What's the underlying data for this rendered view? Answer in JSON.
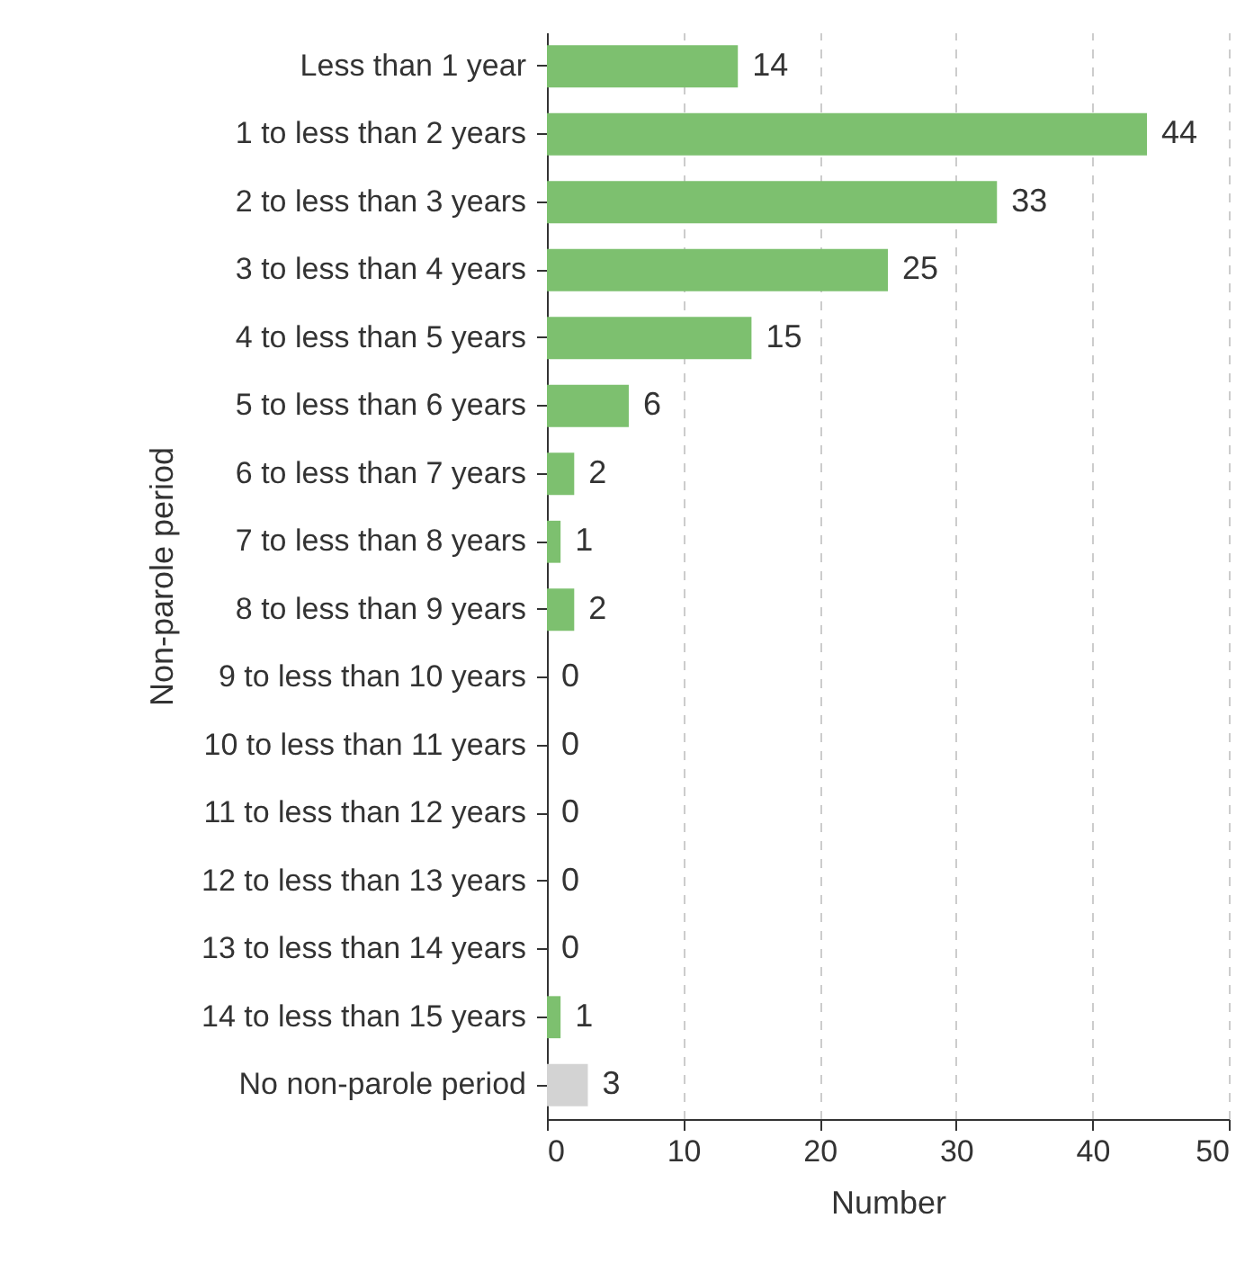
{
  "chart_data": {
    "type": "bar",
    "orientation": "horizontal",
    "xlabel": "Number",
    "ylabel": "Non-parole period",
    "categories": [
      "Less than 1 year",
      "1 to less than 2 years",
      "2 to less than 3 years",
      "3 to less than 4 years",
      "4 to less than 5 years",
      "5 to less than 6 years",
      "6 to less than 7 years",
      "7 to less than 8 years",
      "8 to less than 9 years",
      "9 to less than 10 years",
      "10 to less than 11 years",
      "11 to less than 12 years",
      "12 to less than 13 years",
      "13 to less than 14 years",
      "14 to less than 15 years",
      "No non-parole period"
    ],
    "values": [
      14,
      44,
      33,
      25,
      15,
      6,
      2,
      1,
      2,
      0,
      0,
      0,
      0,
      0,
      1,
      3
    ],
    "colors": [
      "#7dc06f",
      "#7dc06f",
      "#7dc06f",
      "#7dc06f",
      "#7dc06f",
      "#7dc06f",
      "#7dc06f",
      "#7dc06f",
      "#7dc06f",
      "#7dc06f",
      "#7dc06f",
      "#7dc06f",
      "#7dc06f",
      "#7dc06f",
      "#7dc06f",
      "#d3d3d3"
    ],
    "xlim": [
      0,
      50
    ],
    "xticks": [
      0,
      10,
      20,
      30,
      40,
      50
    ],
    "grid": "x",
    "data_labels": true
  }
}
